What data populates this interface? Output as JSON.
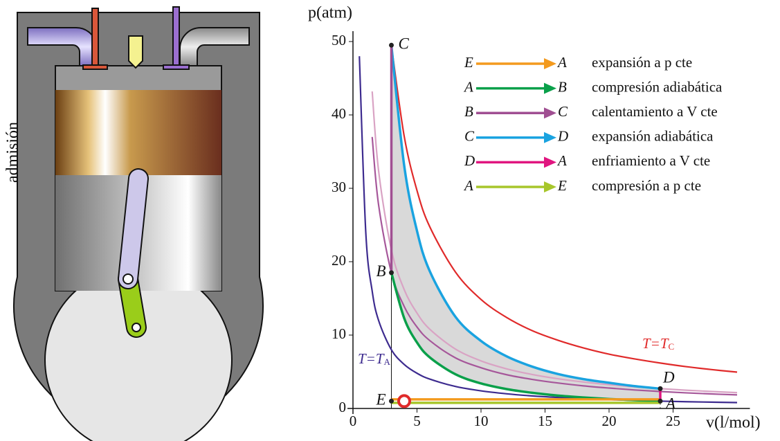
{
  "side_label": "admisión",
  "chart_data": {
    "type": "line",
    "y_label": "p(atm)",
    "x_label": "v(l/mol)",
    "xlim": [
      0,
      31
    ],
    "ylim": [
      0,
      50
    ],
    "xticks": [
      0,
      5,
      10,
      15,
      20,
      25
    ],
    "yticks": [
      0,
      10,
      20,
      30,
      40,
      50
    ],
    "x": [
      0.5,
      1,
      1.5,
      2,
      3,
      4,
      5,
      6,
      8,
      10,
      12,
      14,
      16,
      18,
      20,
      22,
      24,
      26,
      28,
      30
    ],
    "series": [
      {
        "label": "T=T",
        "label_sub": "A",
        "color": "#3d2b8f",
        "values": [
          48,
          24,
          16,
          12,
          8,
          6,
          4.8,
          4,
          3,
          2.4,
          2,
          1.71,
          1.5,
          1.33,
          1.2,
          1.09,
          1,
          0.92,
          0.86,
          0.8
        ]
      },
      {
        "label": "T=T",
        "label_sub": "C",
        "color": "#e02a2a",
        "values": [
          null,
          null,
          null,
          null,
          49.5,
          37.1,
          29.7,
          24.75,
          18.6,
          14.85,
          12.4,
          10.6,
          9.3,
          8.25,
          7.4,
          6.75,
          6.19,
          5.7,
          5.3,
          4.95
        ]
      },
      {
        "color": "#a6579a",
        "values": [
          null,
          null,
          37,
          27.75,
          18.5,
          13.9,
          11.1,
          9.25,
          6.9,
          5.55,
          4.6,
          3.96,
          3.47,
          3.08,
          2.78,
          2.52,
          2.31,
          2.13,
          1.98,
          1.85
        ]
      },
      {
        "color": "#d9a3c4",
        "values": [
          null,
          null,
          43.2,
          32.4,
          21.6,
          16.2,
          13,
          10.8,
          8.1,
          6.48,
          5.4,
          4.63,
          4.05,
          3.6,
          3.24,
          2.95,
          2.7,
          2.49,
          2.31,
          2.16
        ]
      },
      {
        "color": "#0aa04a",
        "values": [
          null,
          null,
          null,
          null,
          18.5,
          12.3,
          8.99,
          6.96,
          4.66,
          3.41,
          2.64,
          2.13,
          1.76,
          1.5,
          1.29,
          1.13,
          1,
          null,
          null,
          null
        ]
      },
      {
        "color": "#1aa3e0",
        "values": [
          null,
          null,
          null,
          null,
          49.5,
          33.1,
          24.2,
          18.7,
          12.5,
          9.2,
          7.1,
          5.7,
          4.7,
          4,
          3.5,
          3.04,
          2.7,
          null,
          null,
          null
        ]
      }
    ],
    "points": [
      {
        "label": "E",
        "v": 3,
        "p": 1
      },
      {
        "label": "A",
        "v": 24,
        "p": 1
      },
      {
        "label": "B",
        "v": 3,
        "p": 18.5
      },
      {
        "label": "C",
        "v": 3,
        "p": 49.5
      },
      {
        "label": "D",
        "v": 24,
        "p": 2.7
      }
    ],
    "marker": {
      "v": 4,
      "p": 1,
      "color": "#e02a2a"
    },
    "legend": [
      {
        "from": "E",
        "to": "A",
        "color": "#f39a1e",
        "text": "expansión a p cte"
      },
      {
        "from": "A",
        "to": "B",
        "color": "#0aa04a",
        "text": "compresión adiabática"
      },
      {
        "from": "B",
        "to": "C",
        "color": "#a04f92",
        "text": "calentamiento a V cte"
      },
      {
        "from": "C",
        "to": "D",
        "color": "#1aa3e0",
        "text": "expansión adiabática"
      },
      {
        "from": "D",
        "to": "A",
        "color": "#e0157f",
        "text": "enfriamiento a V cte"
      },
      {
        "from": "A",
        "to": "E",
        "color": "#a7c62b",
        "text": "compresión a p cte"
      }
    ]
  }
}
